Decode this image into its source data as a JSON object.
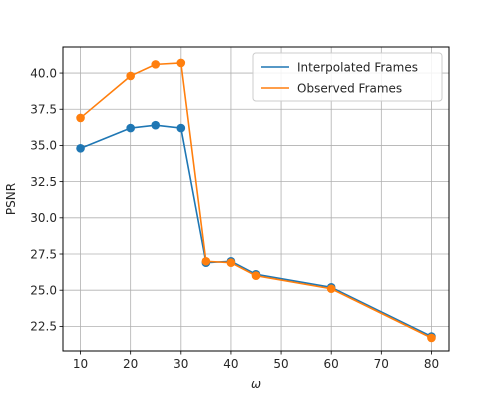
{
  "chart_data": {
    "type": "line",
    "title": "",
    "xlabel": "ω",
    "ylabel": "PSNR",
    "x": [
      10,
      20,
      25,
      30,
      35,
      40,
      45,
      60,
      80
    ],
    "xlim": [
      6.5,
      83.5
    ],
    "ylim": [
      20.8,
      41.8
    ],
    "xticks": [
      10,
      20,
      30,
      40,
      50,
      60,
      70,
      80
    ],
    "yticks": [
      22.5,
      25.0,
      27.5,
      30.0,
      32.5,
      35.0,
      37.5,
      40.0
    ],
    "xtick_labels": [
      "10",
      "20",
      "30",
      "40",
      "50",
      "60",
      "70",
      "80"
    ],
    "ytick_labels": [
      "22.5",
      "25.0",
      "27.5",
      "30.0",
      "32.5",
      "35.0",
      "37.5",
      "40.0"
    ],
    "grid": true,
    "legend_position": "top-right",
    "series": [
      {
        "name": "Interpolated Frames",
        "color": "#1f77b4",
        "values": [
          34.8,
          36.2,
          36.4,
          36.2,
          26.9,
          27.0,
          26.1,
          25.2,
          21.8
        ]
      },
      {
        "name": "Observed Frames",
        "color": "#ff7f0e",
        "values": [
          36.9,
          39.8,
          40.6,
          40.7,
          27.0,
          26.9,
          26.0,
          25.1,
          21.7
        ]
      }
    ]
  }
}
